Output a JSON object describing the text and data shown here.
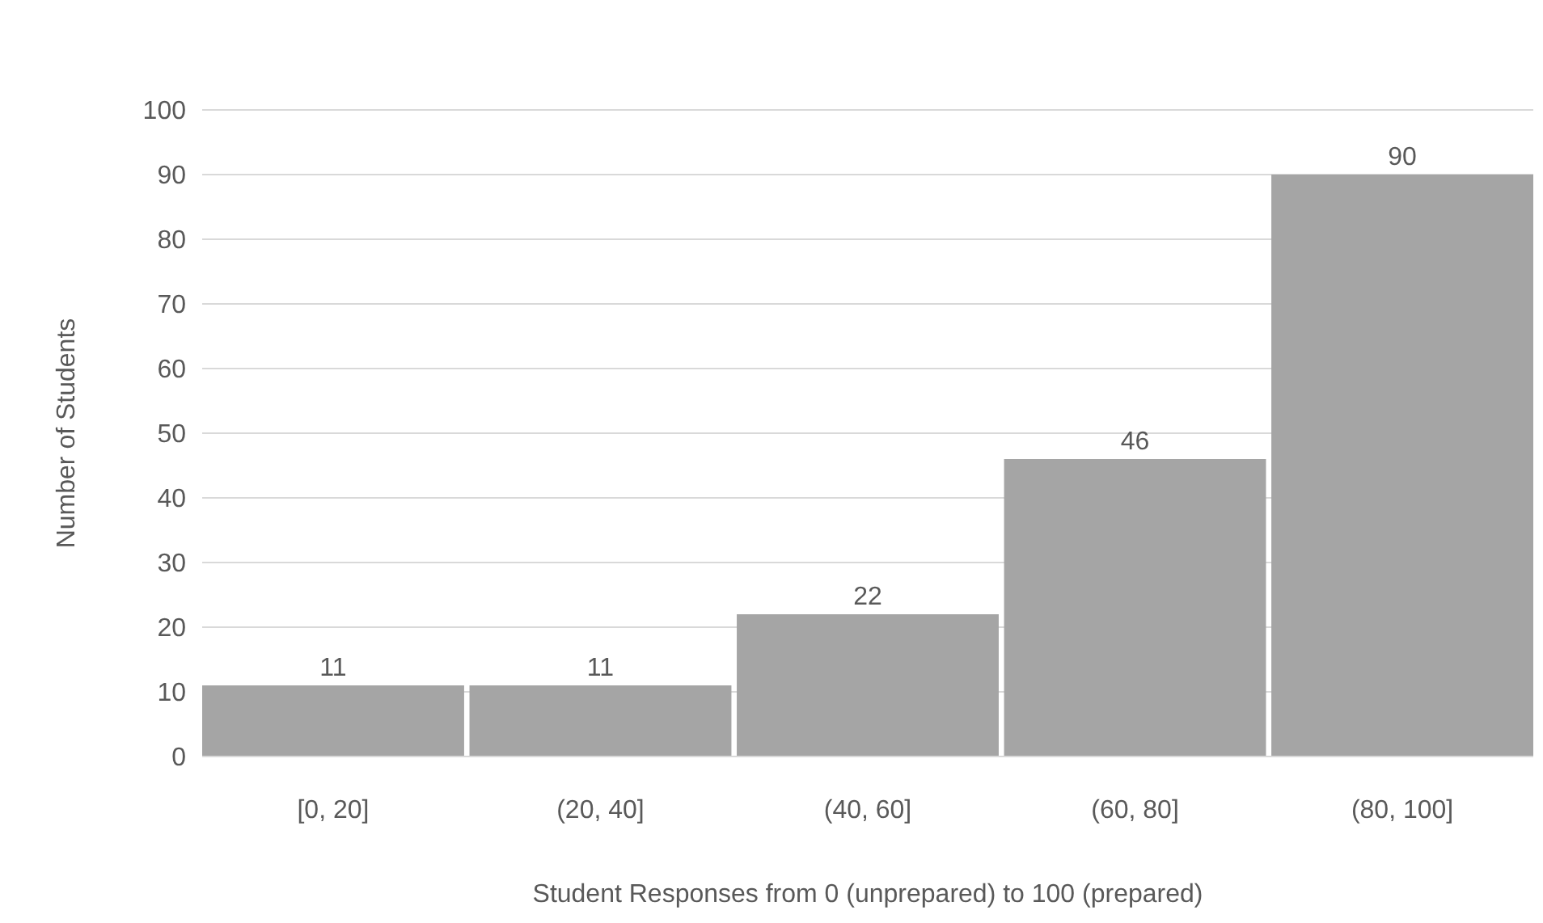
{
  "chart_data": {
    "type": "bar",
    "xlabel": "Student Responses from 0 (unprepared) to 100 (prepared)",
    "ylabel": "Number of Students",
    "categories": [
      "[0, 20]",
      "(20, 40]",
      "(40, 60]",
      "(60, 80]",
      "(80, 100]"
    ],
    "values": [
      11,
      11,
      22,
      46,
      90
    ],
    "color": "#a5a5a5",
    "ylim": [
      0,
      100
    ],
    "yticks": [
      0,
      10,
      20,
      30,
      40,
      50,
      60,
      70,
      80,
      90,
      100
    ],
    "grid": "y",
    "data_labels": true
  }
}
